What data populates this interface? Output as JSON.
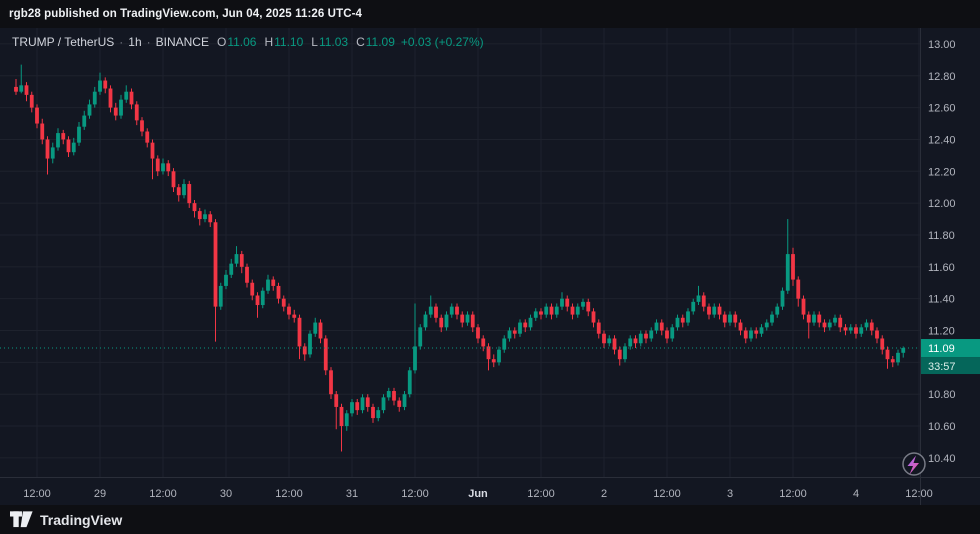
{
  "top_bar": {
    "attribution": "rgb28 published on TradingView.com, Jun 04, 2025 11:26 UTC-4"
  },
  "legend": {
    "symbol": "TRUMP / TetherUS",
    "sep": "·",
    "interval": "1h",
    "exchange": "BINANCE",
    "o_label": "O",
    "o": "11.06",
    "h_label": "H",
    "h": "11.10",
    "l_label": "L",
    "l": "11.03",
    "c_label": "C",
    "c": "11.09",
    "change": "+0.03 (+0.27%)"
  },
  "price_axis": {
    "labels": [
      "13.00",
      "12.80",
      "12.60",
      "12.40",
      "12.20",
      "12.00",
      "11.80",
      "11.60",
      "11.40",
      "11.20",
      "11.00",
      "10.80",
      "10.60",
      "10.40"
    ],
    "last_price": "11.09",
    "countdown": "33:57"
  },
  "footer": {
    "brand": "TradingView"
  },
  "colors": {
    "up": "#089981",
    "down": "#f23645",
    "bg": "#131722",
    "grid": "#1e222d",
    "axis_text": "#b2b5be",
    "major_tick_text": "#d8dbe3",
    "panel_border": "#2a2e39",
    "badge_bg": "#089981",
    "badge_text": "#ffffff",
    "countdown_bg": "#05665a",
    "countdown_text": "#daeee9",
    "bolt_top": "#a06bfa",
    "bolt_bottom": "#f0589b",
    "bolt_ring": "#787b86"
  },
  "chart_data": {
    "type": "candlestick",
    "symbol": "TRUMP / TetherUS",
    "exchange": "BINANCE",
    "interval": "1h",
    "last": 11.09,
    "ohlc_display": {
      "open": 11.06,
      "high": 11.1,
      "low": 11.03,
      "close": 11.09,
      "change": "+0.03 (+0.27%)"
    },
    "ylim": [
      10.28,
      13.1
    ],
    "grid": true,
    "y_ticks": [
      13.0,
      12.8,
      12.6,
      12.4,
      12.2,
      12.0,
      11.8,
      11.6,
      11.4,
      11.2,
      11.0,
      10.8,
      10.6,
      10.4
    ],
    "x_ticks": [
      {
        "label": "12:00",
        "i": 4
      },
      {
        "label": "29",
        "i": 16
      },
      {
        "label": "12:00",
        "i": 28
      },
      {
        "label": "30",
        "i": 40
      },
      {
        "label": "12:00",
        "i": 52
      },
      {
        "label": "31",
        "i": 64
      },
      {
        "label": "12:00",
        "i": 76
      },
      {
        "label": "Jun",
        "i": 88,
        "major": true
      },
      {
        "label": "12:00",
        "i": 100
      },
      {
        "label": "2",
        "i": 112
      },
      {
        "label": "12:00",
        "i": 124
      },
      {
        "label": "3",
        "i": 136
      },
      {
        "label": "12:00",
        "i": 148
      },
      {
        "label": "4",
        "i": 160
      },
      {
        "label": "12:00",
        "i": 172
      }
    ],
    "candles": [
      [
        12.73,
        12.78,
        12.68,
        12.7
      ],
      [
        12.7,
        12.87,
        12.69,
        12.74
      ],
      [
        12.74,
        12.76,
        12.64,
        12.68
      ],
      [
        12.68,
        12.7,
        12.57,
        12.6
      ],
      [
        12.6,
        12.62,
        12.47,
        12.5
      ],
      [
        12.5,
        12.53,
        12.37,
        12.4
      ],
      [
        12.4,
        12.42,
        12.18,
        12.28
      ],
      [
        12.28,
        12.38,
        12.25,
        12.35
      ],
      [
        12.35,
        12.47,
        12.33,
        12.44
      ],
      [
        12.44,
        12.46,
        12.37,
        12.4
      ],
      [
        12.4,
        12.42,
        12.29,
        12.32
      ],
      [
        12.32,
        12.41,
        12.3,
        12.38
      ],
      [
        12.38,
        12.51,
        12.36,
        12.48
      ],
      [
        12.48,
        12.58,
        12.46,
        12.55
      ],
      [
        12.55,
        12.65,
        12.53,
        12.62
      ],
      [
        12.62,
        12.73,
        12.6,
        12.7
      ],
      [
        12.7,
        12.82,
        12.68,
        12.77
      ],
      [
        12.77,
        12.79,
        12.69,
        12.72
      ],
      [
        12.72,
        12.74,
        12.57,
        12.6
      ],
      [
        12.6,
        12.63,
        12.52,
        12.55
      ],
      [
        12.55,
        12.68,
        12.53,
        12.65
      ],
      [
        12.65,
        12.74,
        12.63,
        12.7
      ],
      [
        12.7,
        12.72,
        12.59,
        12.62
      ],
      [
        12.62,
        12.64,
        12.49,
        12.52
      ],
      [
        12.52,
        12.54,
        12.42,
        12.45
      ],
      [
        12.45,
        12.47,
        12.35,
        12.38
      ],
      [
        12.38,
        12.4,
        12.15,
        12.28
      ],
      [
        12.28,
        12.3,
        12.17,
        12.2
      ],
      [
        12.2,
        12.28,
        12.18,
        12.25
      ],
      [
        12.25,
        12.27,
        12.17,
        12.2
      ],
      [
        12.2,
        12.22,
        12.07,
        12.1
      ],
      [
        12.1,
        12.12,
        12.01,
        12.05
      ],
      [
        12.05,
        12.15,
        12.03,
        12.12
      ],
      [
        12.12,
        12.14,
        11.97,
        12.0
      ],
      [
        12.0,
        12.02,
        11.91,
        11.95
      ],
      [
        11.95,
        11.97,
        11.86,
        11.9
      ],
      [
        11.9,
        11.96,
        11.88,
        11.93
      ],
      [
        11.93,
        11.95,
        11.85,
        11.88
      ],
      [
        11.88,
        11.9,
        11.13,
        11.35
      ],
      [
        11.35,
        11.5,
        11.33,
        11.48
      ],
      [
        11.48,
        11.58,
        11.46,
        11.55
      ],
      [
        11.55,
        11.65,
        11.53,
        11.62
      ],
      [
        11.62,
        11.73,
        11.6,
        11.68
      ],
      [
        11.68,
        11.7,
        11.56,
        11.6
      ],
      [
        11.6,
        11.62,
        11.47,
        11.5
      ],
      [
        11.5,
        11.52,
        11.39,
        11.42
      ],
      [
        11.42,
        11.44,
        11.28,
        11.36
      ],
      [
        11.36,
        11.47,
        11.34,
        11.45
      ],
      [
        11.45,
        11.55,
        11.43,
        11.52
      ],
      [
        11.52,
        11.54,
        11.45,
        11.48
      ],
      [
        11.48,
        11.5,
        11.37,
        11.4
      ],
      [
        11.4,
        11.42,
        11.32,
        11.35
      ],
      [
        11.35,
        11.37,
        11.27,
        11.3
      ],
      [
        11.3,
        11.33,
        11.25,
        11.28
      ],
      [
        11.28,
        11.3,
        11.02,
        11.1
      ],
      [
        11.1,
        11.12,
        11.01,
        11.05
      ],
      [
        11.05,
        11.2,
        11.03,
        11.18
      ],
      [
        11.18,
        11.28,
        11.16,
        11.25
      ],
      [
        11.25,
        11.27,
        11.12,
        11.15
      ],
      [
        11.15,
        11.17,
        10.92,
        10.95
      ],
      [
        10.95,
        10.97,
        10.77,
        10.8
      ],
      [
        10.8,
        10.82,
        10.58,
        10.72
      ],
      [
        10.72,
        10.74,
        10.44,
        10.6
      ],
      [
        10.6,
        10.7,
        10.57,
        10.68
      ],
      [
        10.68,
        10.77,
        10.66,
        10.75
      ],
      [
        10.75,
        10.77,
        10.67,
        10.7
      ],
      [
        10.7,
        10.8,
        10.68,
        10.78
      ],
      [
        10.78,
        10.8,
        10.69,
        10.72
      ],
      [
        10.72,
        10.74,
        10.62,
        10.65
      ],
      [
        10.65,
        10.72,
        10.63,
        10.7
      ],
      [
        10.7,
        10.8,
        10.68,
        10.78
      ],
      [
        10.78,
        10.84,
        10.76,
        10.82
      ],
      [
        10.82,
        10.84,
        10.73,
        10.76
      ],
      [
        10.76,
        10.78,
        10.69,
        10.72
      ],
      [
        10.72,
        10.82,
        10.7,
        10.8
      ],
      [
        10.8,
        10.97,
        10.78,
        10.95
      ],
      [
        10.95,
        11.37,
        10.93,
        11.1
      ],
      [
        11.1,
        11.24,
        11.08,
        11.22
      ],
      [
        11.22,
        11.32,
        11.2,
        11.3
      ],
      [
        11.3,
        11.42,
        11.28,
        11.35
      ],
      [
        11.35,
        11.37,
        11.25,
        11.28
      ],
      [
        11.28,
        11.3,
        11.19,
        11.22
      ],
      [
        11.22,
        11.32,
        11.2,
        11.3
      ],
      [
        11.3,
        11.37,
        11.28,
        11.35
      ],
      [
        11.35,
        11.37,
        11.27,
        11.3
      ],
      [
        11.3,
        11.32,
        11.22,
        11.25
      ],
      [
        11.25,
        11.32,
        11.23,
        11.3
      ],
      [
        11.3,
        11.32,
        11.19,
        11.22
      ],
      [
        11.22,
        11.24,
        11.12,
        11.15
      ],
      [
        11.15,
        11.17,
        11.07,
        11.1
      ],
      [
        11.1,
        11.12,
        10.95,
        11.02
      ],
      [
        11.02,
        11.05,
        10.97,
        11.0
      ],
      [
        11.0,
        11.1,
        10.98,
        11.08
      ],
      [
        11.08,
        11.17,
        11.06,
        11.15
      ],
      [
        11.15,
        11.22,
        11.13,
        11.2
      ],
      [
        11.2,
        11.22,
        11.15,
        11.18
      ],
      [
        11.18,
        11.27,
        11.16,
        11.25
      ],
      [
        11.25,
        11.27,
        11.19,
        11.22
      ],
      [
        11.22,
        11.3,
        11.2,
        11.28
      ],
      [
        11.28,
        11.34,
        11.26,
        11.32
      ],
      [
        11.32,
        11.34,
        11.27,
        11.3
      ],
      [
        11.3,
        11.37,
        11.28,
        11.35
      ],
      [
        11.35,
        11.37,
        11.27,
        11.3
      ],
      [
        11.3,
        11.37,
        11.28,
        11.35
      ],
      [
        11.35,
        11.44,
        11.33,
        11.4
      ],
      [
        11.4,
        11.42,
        11.32,
        11.35
      ],
      [
        11.35,
        11.37,
        11.27,
        11.3
      ],
      [
        11.3,
        11.37,
        11.28,
        11.35
      ],
      [
        11.35,
        11.4,
        11.33,
        11.38
      ],
      [
        11.38,
        11.4,
        11.29,
        11.32
      ],
      [
        11.32,
        11.34,
        11.22,
        11.25
      ],
      [
        11.25,
        11.27,
        11.15,
        11.18
      ],
      [
        11.18,
        11.2,
        11.09,
        11.12
      ],
      [
        11.12,
        11.17,
        11.1,
        11.15
      ],
      [
        11.15,
        11.17,
        11.05,
        11.08
      ],
      [
        11.08,
        11.1,
        10.98,
        11.02
      ],
      [
        11.02,
        11.12,
        11.0,
        11.1
      ],
      [
        11.1,
        11.17,
        11.08,
        11.15
      ],
      [
        11.15,
        11.17,
        11.09,
        11.12
      ],
      [
        11.12,
        11.2,
        11.1,
        11.18
      ],
      [
        11.18,
        11.2,
        11.12,
        11.15
      ],
      [
        11.15,
        11.22,
        11.13,
        11.2
      ],
      [
        11.2,
        11.27,
        11.18,
        11.25
      ],
      [
        11.25,
        11.27,
        11.17,
        11.2
      ],
      [
        11.2,
        11.22,
        11.12,
        11.15
      ],
      [
        11.15,
        11.24,
        11.13,
        11.22
      ],
      [
        11.22,
        11.3,
        11.2,
        11.28
      ],
      [
        11.28,
        11.3,
        11.22,
        11.25
      ],
      [
        11.25,
        11.34,
        11.23,
        11.32
      ],
      [
        11.32,
        11.4,
        11.3,
        11.38
      ],
      [
        11.38,
        11.48,
        11.36,
        11.42
      ],
      [
        11.42,
        11.44,
        11.32,
        11.35
      ],
      [
        11.35,
        11.37,
        11.27,
        11.3
      ],
      [
        11.3,
        11.37,
        11.28,
        11.35
      ],
      [
        11.35,
        11.37,
        11.27,
        11.3
      ],
      [
        11.3,
        11.32,
        11.22,
        11.25
      ],
      [
        11.25,
        11.32,
        11.23,
        11.3
      ],
      [
        11.3,
        11.32,
        11.22,
        11.25
      ],
      [
        11.25,
        11.27,
        11.17,
        11.2
      ],
      [
        11.2,
        11.22,
        11.12,
        11.15
      ],
      [
        11.15,
        11.22,
        11.13,
        11.2
      ],
      [
        11.2,
        11.22,
        11.15,
        11.18
      ],
      [
        11.18,
        11.24,
        11.16,
        11.22
      ],
      [
        11.22,
        11.27,
        11.2,
        11.25
      ],
      [
        11.25,
        11.32,
        11.23,
        11.3
      ],
      [
        11.3,
        11.37,
        11.28,
        11.35
      ],
      [
        11.35,
        11.47,
        11.33,
        11.45
      ],
      [
        11.45,
        11.9,
        11.43,
        11.68
      ],
      [
        11.68,
        11.72,
        11.48,
        11.52
      ],
      [
        11.52,
        11.54,
        11.35,
        11.4
      ],
      [
        11.4,
        11.42,
        11.27,
        11.3
      ],
      [
        11.3,
        11.32,
        11.15,
        11.25
      ],
      [
        11.25,
        11.32,
        11.23,
        11.3
      ],
      [
        11.3,
        11.32,
        11.22,
        11.25
      ],
      [
        11.25,
        11.27,
        11.19,
        11.22
      ],
      [
        11.22,
        11.27,
        11.2,
        11.25
      ],
      [
        11.25,
        11.3,
        11.23,
        11.28
      ],
      [
        11.28,
        11.3,
        11.19,
        11.22
      ],
      [
        11.22,
        11.24,
        11.17,
        11.2
      ],
      [
        11.2,
        11.24,
        11.18,
        11.22
      ],
      [
        11.22,
        11.24,
        11.15,
        11.18
      ],
      [
        11.18,
        11.24,
        11.16,
        11.22
      ],
      [
        11.22,
        11.27,
        11.2,
        11.25
      ],
      [
        11.25,
        11.27,
        11.17,
        11.2
      ],
      [
        11.2,
        11.22,
        11.12,
        11.15
      ],
      [
        11.15,
        11.17,
        11.05,
        11.08
      ],
      [
        11.08,
        11.1,
        10.96,
        11.02
      ],
      [
        11.02,
        11.04,
        10.97,
        11.0
      ],
      [
        11.0,
        11.08,
        10.98,
        11.06
      ],
      [
        11.06,
        11.1,
        11.03,
        11.09
      ]
    ]
  }
}
